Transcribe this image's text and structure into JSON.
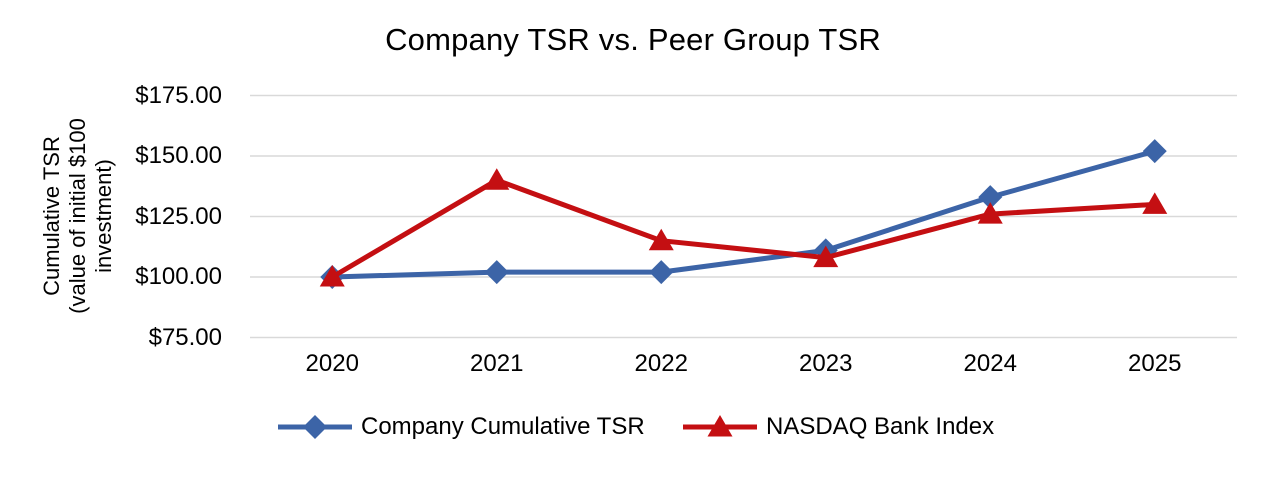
{
  "title": "Company TSR vs. Peer Group TSR",
  "y_axis": {
    "title_lines": [
      "Cumulative TSR",
      "(value of initial $100",
      "investment)"
    ],
    "tick_labels": [
      "$175.00",
      "$150.00",
      "$125.00",
      "$100.00",
      "$75.00"
    ]
  },
  "chart_data": {
    "type": "line",
    "title": "Company TSR vs. Peer Group TSR",
    "categories": [
      "2020",
      "2021",
      "2022",
      "2023",
      "2024",
      "2025"
    ],
    "series": [
      {
        "name": "Company Cumulative TSR",
        "marker": "diamond",
        "color": "#3C64A7",
        "values": [
          100,
          102,
          102,
          111,
          133,
          152
        ]
      },
      {
        "name": "NASDAQ Bank Index",
        "marker": "triangle",
        "color": "#C40F12",
        "values": [
          100,
          140,
          115,
          108,
          126,
          130
        ]
      }
    ],
    "ylabel": "Cumulative TSR (value of initial $100 investment)",
    "xlabel": "",
    "ylim": [
      75,
      175
    ],
    "ytick_step": 25,
    "ytick_prefix": "$",
    "grid": "horizontal-only",
    "gridline_color": "#D9D9D9",
    "legend_position": "bottom",
    "background": "#FFFFFF"
  }
}
